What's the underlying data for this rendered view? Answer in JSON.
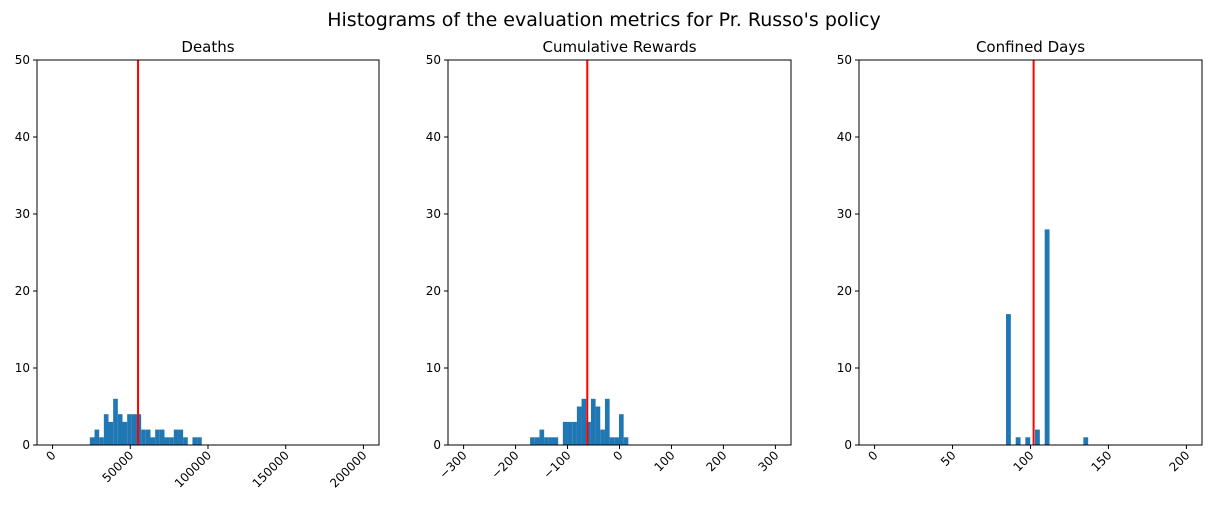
{
  "suptitle": "Histograms of the evaluation metrics for Pr. Russo's policy",
  "colors": {
    "bar": "#1f77b4",
    "mean_line": "#ff0000",
    "axis": "#000000",
    "background": "#ffffff"
  },
  "chart_data": [
    {
      "type": "bar",
      "title": "Deaths",
      "xlabel": "",
      "ylabel": "",
      "xlim": [
        -10000,
        210000
      ],
      "ylim": [
        0,
        50
      ],
      "xticks": [
        0,
        50000,
        100000,
        150000,
        200000
      ],
      "xtick_labels": [
        "0",
        "50000",
        "100000",
        "150000",
        "200000"
      ],
      "yticks": [
        0,
        10,
        20,
        30,
        40,
        50
      ],
      "ytick_labels": [
        "0",
        "10",
        "20",
        "30",
        "40",
        "50"
      ],
      "xtick_rotation": 45,
      "grid": false,
      "mean_line": 55000,
      "bin_width": 3000,
      "bins": [
        {
          "x": 24000,
          "count": 1
        },
        {
          "x": 27000,
          "count": 2
        },
        {
          "x": 30000,
          "count": 1
        },
        {
          "x": 33000,
          "count": 4
        },
        {
          "x": 36000,
          "count": 3
        },
        {
          "x": 39000,
          "count": 6
        },
        {
          "x": 42000,
          "count": 4
        },
        {
          "x": 45000,
          "count": 3
        },
        {
          "x": 48000,
          "count": 4
        },
        {
          "x": 51000,
          "count": 4
        },
        {
          "x": 54000,
          "count": 4
        },
        {
          "x": 57000,
          "count": 2
        },
        {
          "x": 60000,
          "count": 2
        },
        {
          "x": 63000,
          "count": 1
        },
        {
          "x": 66000,
          "count": 2
        },
        {
          "x": 69000,
          "count": 2
        },
        {
          "x": 72000,
          "count": 1
        },
        {
          "x": 75000,
          "count": 1
        },
        {
          "x": 78000,
          "count": 2
        },
        {
          "x": 81000,
          "count": 2
        },
        {
          "x": 84000,
          "count": 1
        },
        {
          "x": 87000,
          "count": 0
        },
        {
          "x": 90000,
          "count": 1
        },
        {
          "x": 93000,
          "count": 1
        }
      ]
    },
    {
      "type": "bar",
      "title": "Cumulative Rewards",
      "xlabel": "",
      "ylabel": "",
      "xlim": [
        -330,
        330
      ],
      "ylim": [
        0,
        50
      ],
      "xticks": [
        -300,
        -200,
        -100,
        0,
        100,
        200,
        300
      ],
      "xtick_labels": [
        "−300",
        "−200",
        "−100",
        "0",
        "100",
        "200",
        "300"
      ],
      "yticks": [
        0,
        10,
        20,
        30,
        40,
        50
      ],
      "ytick_labels": [
        "0",
        "10",
        "20",
        "30",
        "40",
        "50"
      ],
      "xtick_rotation": 45,
      "grid": false,
      "mean_line": -62,
      "bin_width": 9,
      "bins": [
        {
          "x": -172,
          "count": 1
        },
        {
          "x": -163,
          "count": 1
        },
        {
          "x": -154,
          "count": 2
        },
        {
          "x": -145,
          "count": 1
        },
        {
          "x": -136,
          "count": 1
        },
        {
          "x": -127,
          "count": 1
        },
        {
          "x": -118,
          "count": 0
        },
        {
          "x": -109,
          "count": 3
        },
        {
          "x": -100,
          "count": 3
        },
        {
          "x": -91,
          "count": 3
        },
        {
          "x": -82,
          "count": 5
        },
        {
          "x": -73,
          "count": 6
        },
        {
          "x": -64,
          "count": 3
        },
        {
          "x": -55,
          "count": 6
        },
        {
          "x": -46,
          "count": 5
        },
        {
          "x": -37,
          "count": 2
        },
        {
          "x": -28,
          "count": 6
        },
        {
          "x": -19,
          "count": 1
        },
        {
          "x": -10,
          "count": 1
        },
        {
          "x": -1,
          "count": 4
        },
        {
          "x": 8,
          "count": 1
        }
      ]
    },
    {
      "type": "bar",
      "title": "Confined Days",
      "xlabel": "",
      "ylabel": "",
      "xlim": [
        -10,
        210
      ],
      "ylim": [
        0,
        50
      ],
      "xticks": [
        0,
        50,
        100,
        150,
        200
      ],
      "xtick_labels": [
        "0",
        "50",
        "100",
        "150",
        "200"
      ],
      "yticks": [
        0,
        10,
        20,
        30,
        40,
        50
      ],
      "ytick_labels": [
        "0",
        "10",
        "20",
        "30",
        "40",
        "50"
      ],
      "xtick_rotation": 45,
      "grid": false,
      "mean_line": 102,
      "bin_width": 3.1,
      "bins": [
        {
          "x": 84.3,
          "count": 17
        },
        {
          "x": 90.5,
          "count": 1
        },
        {
          "x": 96.7,
          "count": 1
        },
        {
          "x": 102.9,
          "count": 2
        },
        {
          "x": 109.1,
          "count": 28
        },
        {
          "x": 133.9,
          "count": 1
        }
      ]
    }
  ]
}
